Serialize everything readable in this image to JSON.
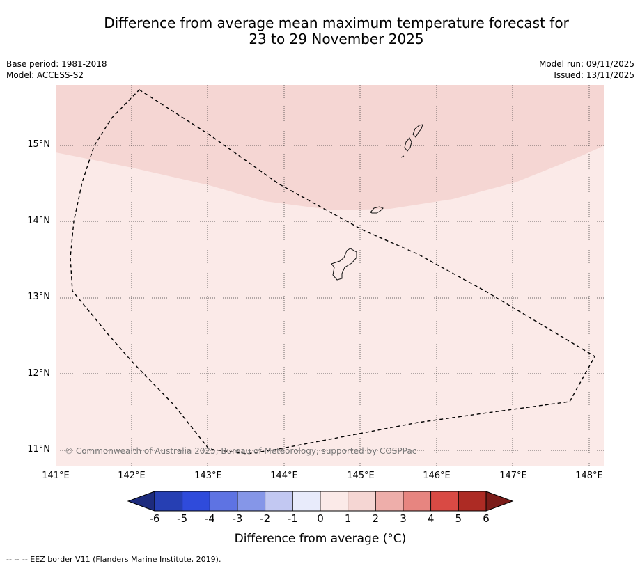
{
  "title": {
    "line1": "Difference from average mean maximum temperature forecast for",
    "line2": "23 to 29 November 2025"
  },
  "meta_left": {
    "base_period": "Base period: 1981-2018",
    "model": "Model: ACCESS-S2"
  },
  "meta_right": {
    "model_run": "Model run: 09/11/2025",
    "issued": "Issued: 13/11/2025"
  },
  "map": {
    "lat_labels": [
      "15°N",
      "14°N",
      "13°N",
      "12°N",
      "11°N"
    ],
    "lon_labels": [
      "141°E",
      "142°E",
      "143°E",
      "144°E",
      "145°E",
      "146°E",
      "147°E",
      "148°E"
    ],
    "copyright": "© Commonwealth of Australia 2025, Bureau of Meteorology, supported by COSPPac",
    "regions": [
      {
        "category": "1 to 2",
        "color": "#f5d6d3"
      },
      {
        "category": "0 to 1",
        "color": "#fbeae8"
      }
    ]
  },
  "colorbar": {
    "ticks": [
      "-6",
      "-5",
      "-4",
      "-3",
      "-2",
      "-1",
      "0",
      "1",
      "2",
      "3",
      "4",
      "5",
      "6"
    ],
    "colors": [
      "#263fb3",
      "#2f4bdb",
      "#5e73e3",
      "#8596e8",
      "#c2c8f2",
      "#e8ebfb",
      "#fbeae8",
      "#f5d6d3",
      "#eeaeaa",
      "#e78580",
      "#d94a44",
      "#ad2b24"
    ],
    "under_color": "#1d2b7d",
    "over_color": "#7b1c19",
    "title": "Difference from average (°C)"
  },
  "footer": "--  --  -- EEZ border V11 (Flanders Marine Institute, 2019)."
}
